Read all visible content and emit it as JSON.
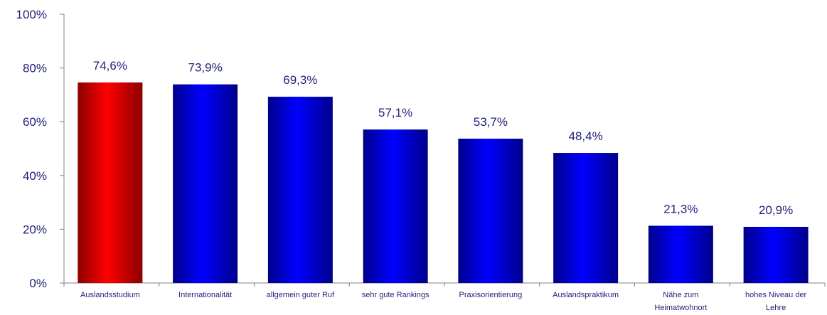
{
  "chart_data": {
    "type": "bar",
    "title": "",
    "xlabel": "",
    "ylabel": "",
    "ylim": [
      0,
      100
    ],
    "y_ticks": [
      "0%",
      "20%",
      "40%",
      "60%",
      "80%",
      "100%"
    ],
    "y_tick_values": [
      0,
      20,
      40,
      60,
      80,
      100
    ],
    "grid": false,
    "legend": "none",
    "categories": [
      [
        "Auslandsstudium"
      ],
      [
        "Internationalität"
      ],
      [
        "allgemein guter Ruf"
      ],
      [
        "sehr gute Rankings"
      ],
      [
        "Praxisorientierung"
      ],
      [
        "Auslandspraktikum"
      ],
      [
        "Nähe zum",
        "Heimatwohnort"
      ],
      [
        "hohes Niveau der",
        "Lehre"
      ]
    ],
    "values": [
      74.6,
      73.9,
      69.3,
      57.1,
      53.7,
      48.4,
      21.3,
      20.9
    ],
    "data_labels": [
      "74,6%",
      "73,9%",
      "69,3%",
      "57,1%",
      "53,7%",
      "48,4%",
      "21,3%",
      "20,9%"
    ],
    "highlight_index": 0,
    "colors": {
      "highlight": "#ff0000",
      "highlight_dark": "#8b0000",
      "bar": "#0000ff",
      "bar_dark": "#00008b",
      "axis": "#808080",
      "text": "#1f1f7a"
    }
  }
}
